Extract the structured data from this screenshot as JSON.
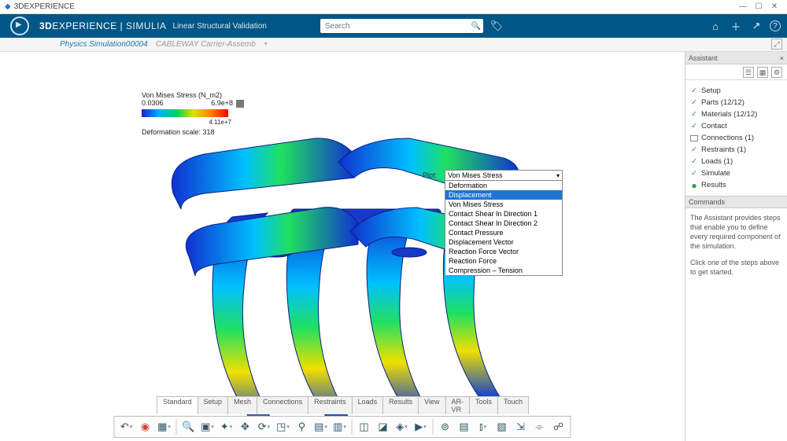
{
  "os": {
    "title": "3DEXPERIENCE",
    "window_buttons": {
      "min": "—",
      "max": "☐",
      "close": "✕"
    }
  },
  "header": {
    "brand_prefix": "3D",
    "brand_main": "EXPERIENCE",
    "divider": " | ",
    "brand_sub": "SIMULIA",
    "product": "Linear Structural Validation",
    "search_placeholder": "Search",
    "icons": {
      "search": "🔍",
      "tag": "🏷",
      "home": "⌂",
      "plus": "＋",
      "share": "↗",
      "help": "?"
    }
  },
  "tabs": {
    "active": "Physics Simulation00004",
    "secondary": "CABLEWAY Carrier-Assemb",
    "add": "+",
    "restore": "⤢"
  },
  "legend": {
    "title": "Von Mises Stress (N_m2)",
    "min": "0.0306",
    "max": "6.9e+8",
    "mid": "4.11e+7",
    "deform": "Deformation scale: 318",
    "gradient_colors": [
      "#2020c0",
      "#00b0ff",
      "#00d060",
      "#e0e000",
      "#ff8000",
      "#ff0000"
    ],
    "overflow_color": "#777777"
  },
  "plot_dropdown": {
    "label": "Plot:",
    "selected": "Von Mises Stress",
    "highlighted_index": 1,
    "options": [
      "Deformation",
      "Displacement",
      "Von Mises Stress",
      "Contact Shear In Direction 1",
      "Contact Shear In Direction 2",
      "Contact Pressure",
      "Displacement Vector",
      "Reaction Force Vector",
      "Reaction Force",
      "Compression – Tension"
    ]
  },
  "assistant": {
    "title": "Assistant",
    "icon_row": [
      "☰",
      "▦",
      "⚙"
    ],
    "steps": [
      {
        "mark": "check",
        "label": "Setup"
      },
      {
        "mark": "check",
        "label": "Parts (12/12)"
      },
      {
        "mark": "check",
        "label": "Materials (12/12)"
      },
      {
        "mark": "check",
        "label": "Contact"
      },
      {
        "mark": "box",
        "label": "Connections (1)"
      },
      {
        "mark": "check",
        "label": "Restraints (1)"
      },
      {
        "mark": "check",
        "label": "Loads (1)"
      },
      {
        "mark": "check",
        "label": "Simulate"
      },
      {
        "mark": "dot",
        "label": "Results"
      }
    ],
    "commands_header": "Commands",
    "commands_body_1": "The Assistant provides steps that enable you to define every required component of the simulation.",
    "commands_body_2": "Click one of the steps above to get started."
  },
  "bottom_tabs": {
    "items": [
      "Standard",
      "Setup",
      "Mesh",
      "Connections",
      "Restraints",
      "Loads",
      "Results",
      "View",
      "AR-VR",
      "Tools",
      "Touch"
    ],
    "active_index": 0
  },
  "toolbar": {
    "buttons": [
      {
        "name": "undo",
        "glyph": "↶",
        "dd": true
      },
      {
        "name": "cube-sim",
        "glyph": "◉",
        "dd": false,
        "color": "#d04030"
      },
      {
        "name": "grid",
        "glyph": "▦",
        "dd": true
      },
      {
        "name": "sep"
      },
      {
        "name": "zoom-fit",
        "glyph": "🔍",
        "dd": false
      },
      {
        "name": "box-iso",
        "glyph": "▣",
        "dd": true
      },
      {
        "name": "axes",
        "glyph": "✦",
        "dd": true
      },
      {
        "name": "pan",
        "glyph": "✥",
        "dd": false
      },
      {
        "name": "rotate",
        "glyph": "⟳",
        "dd": true
      },
      {
        "name": "normal",
        "glyph": "◳",
        "dd": true
      },
      {
        "name": "ground",
        "glyph": "⚲",
        "dd": false
      },
      {
        "name": "shade",
        "glyph": "▤",
        "dd": true
      },
      {
        "name": "clip",
        "glyph": "▥",
        "dd": true
      },
      {
        "name": "sep"
      },
      {
        "name": "result-a",
        "glyph": "◫",
        "dd": false
      },
      {
        "name": "result-b",
        "glyph": "◪",
        "dd": false
      },
      {
        "name": "probe",
        "glyph": "◈",
        "dd": true
      },
      {
        "name": "anim",
        "glyph": "▶",
        "dd": true
      },
      {
        "name": "sep"
      },
      {
        "name": "sensor",
        "glyph": "⊚",
        "dd": false
      },
      {
        "name": "report",
        "glyph": "▤",
        "dd": false
      },
      {
        "name": "chart",
        "glyph": "⫾",
        "dd": true
      },
      {
        "name": "section",
        "glyph": "▧",
        "dd": false
      },
      {
        "name": "export",
        "glyph": "⇲",
        "dd": false
      },
      {
        "name": "camera",
        "glyph": "⌯",
        "dd": false
      },
      {
        "name": "people",
        "glyph": "☍",
        "dd": false
      }
    ]
  },
  "render": {
    "background": "#ffffff",
    "note": "Abstract representation of FEA-colored mechanical carrier; not pixel-accurate."
  }
}
